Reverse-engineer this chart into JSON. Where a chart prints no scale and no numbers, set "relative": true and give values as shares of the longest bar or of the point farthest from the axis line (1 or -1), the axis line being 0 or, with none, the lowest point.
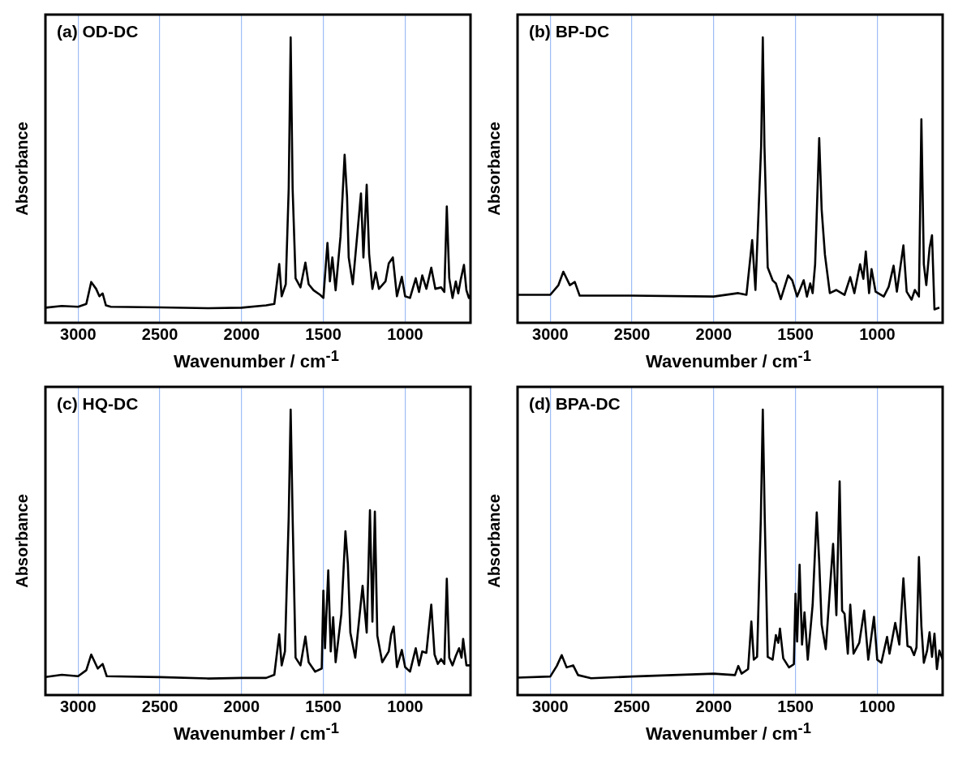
{
  "chart_data": [
    {
      "type": "line",
      "title": "(a) OD-DC",
      "xlabel": "Wavenumber / cm$^{-1}$",
      "ylabel": "Absorbance",
      "relative": true,
      "grid": "x",
      "color": "#000000",
      "xlim": [
        3200,
        600
      ],
      "xticks": [
        3000,
        2500,
        2000,
        1500,
        1000
      ],
      "x": [
        3200,
        3100,
        3000,
        2950,
        2920,
        2890,
        2870,
        2850,
        2830,
        2800,
        2500,
        2200,
        2000,
        1850,
        1800,
        1770,
        1755,
        1730,
        1712,
        1700,
        1688,
        1670,
        1640,
        1610,
        1590,
        1560,
        1520,
        1500,
        1475,
        1460,
        1445,
        1425,
        1395,
        1370,
        1355,
        1345,
        1320,
        1270,
        1255,
        1235,
        1220,
        1200,
        1180,
        1160,
        1120,
        1100,
        1075,
        1050,
        1020,
        1000,
        970,
        935,
        915,
        895,
        870,
        840,
        815,
        780,
        760,
        745,
        730,
        710,
        690,
        675,
        660,
        640,
        625,
        610,
        600
      ],
      "values": [
        0.053,
        0.059,
        0.056,
        0.066,
        0.143,
        0.119,
        0.093,
        0.103,
        0.061,
        0.056,
        0.054,
        0.051,
        0.053,
        0.061,
        0.066,
        0.206,
        0.093,
        0.135,
        0.47,
        1.0,
        0.47,
        0.156,
        0.124,
        0.211,
        0.135,
        0.114,
        0.098,
        0.087,
        0.28,
        0.145,
        0.229,
        0.114,
        0.303,
        0.589,
        0.44,
        0.229,
        0.135,
        0.453,
        0.229,
        0.484,
        0.24,
        0.119,
        0.177,
        0.119,
        0.145,
        0.208,
        0.229,
        0.093,
        0.161,
        0.093,
        0.087,
        0.156,
        0.108,
        0.166,
        0.119,
        0.193,
        0.119,
        0.124,
        0.108,
        0.408,
        0.156,
        0.087,
        0.145,
        0.103,
        0.151,
        0.203,
        0.114,
        0.087,
        0.098
      ]
    },
    {
      "type": "line",
      "title": "(b) BP-DC",
      "xlabel": "Wavenumber / cm$^{-1}$",
      "ylabel": "Absorbance",
      "relative": true,
      "grid": "x",
      "color": "#000000",
      "xlim": [
        3200,
        600
      ],
      "xticks": [
        3000,
        2500,
        2000,
        1500,
        1000
      ],
      "x": [
        3200,
        3000,
        2950,
        2920,
        2880,
        2850,
        2820,
        2500,
        2000,
        1850,
        1800,
        1765,
        1745,
        1710,
        1700,
        1690,
        1670,
        1640,
        1620,
        1590,
        1545,
        1520,
        1490,
        1450,
        1430,
        1410,
        1395,
        1380,
        1355,
        1340,
        1320,
        1290,
        1250,
        1200,
        1165,
        1140,
        1105,
        1085,
        1070,
        1050,
        1035,
        1010,
        960,
        930,
        900,
        880,
        840,
        820,
        790,
        770,
        745,
        730,
        715,
        700,
        680,
        665,
        650,
        620
      ],
      "values": [
        0.098,
        0.098,
        0.132,
        0.179,
        0.132,
        0.143,
        0.095,
        0.095,
        0.092,
        0.104,
        0.098,
        0.29,
        0.115,
        0.62,
        1.0,
        0.62,
        0.194,
        0.149,
        0.138,
        0.083,
        0.166,
        0.149,
        0.092,
        0.149,
        0.092,
        0.138,
        0.104,
        0.205,
        0.647,
        0.397,
        0.239,
        0.104,
        0.115,
        0.098,
        0.16,
        0.104,
        0.205,
        0.154,
        0.25,
        0.104,
        0.188,
        0.109,
        0.092,
        0.126,
        0.2,
        0.109,
        0.271,
        0.109,
        0.081,
        0.115,
        0.092,
        0.713,
        0.205,
        0.132,
        0.262,
        0.307,
        0.047,
        0.053
      ]
    },
    {
      "type": "line",
      "title": "(c) HQ-DC",
      "xlabel": "Wavenumber / cm$^{-1}$",
      "ylabel": "Absorbance",
      "relative": true,
      "grid": "x",
      "color": "#000000",
      "xlim": [
        3200,
        600
      ],
      "xticks": [
        3000,
        2500,
        2000,
        1500,
        1000
      ],
      "x": [
        3200,
        3100,
        3000,
        2950,
        2920,
        2880,
        2850,
        2825,
        2500,
        2200,
        2000,
        1850,
        1800,
        1770,
        1755,
        1735,
        1712,
        1700,
        1688,
        1670,
        1640,
        1610,
        1590,
        1550,
        1510,
        1500,
        1490,
        1470,
        1455,
        1440,
        1425,
        1390,
        1365,
        1350,
        1335,
        1305,
        1260,
        1235,
        1215,
        1200,
        1185,
        1170,
        1140,
        1100,
        1085,
        1070,
        1050,
        1020,
        1000,
        970,
        935,
        915,
        895,
        870,
        840,
        820,
        800,
        780,
        760,
        745,
        730,
        710,
        690,
        670,
        655,
        645,
        625,
        600
      ],
      "values": [
        0.063,
        0.071,
        0.066,
        0.087,
        0.142,
        0.093,
        0.109,
        0.066,
        0.063,
        0.058,
        0.06,
        0.06,
        0.071,
        0.213,
        0.104,
        0.153,
        0.623,
        1.0,
        0.623,
        0.131,
        0.104,
        0.205,
        0.115,
        0.082,
        0.093,
        0.366,
        0.164,
        0.437,
        0.153,
        0.273,
        0.115,
        0.284,
        0.574,
        0.459,
        0.219,
        0.131,
        0.383,
        0.219,
        0.648,
        0.257,
        0.643,
        0.208,
        0.115,
        0.153,
        0.213,
        0.24,
        0.098,
        0.158,
        0.098,
        0.082,
        0.164,
        0.104,
        0.153,
        0.148,
        0.317,
        0.142,
        0.109,
        0.126,
        0.109,
        0.408,
        0.131,
        0.104,
        0.137,
        0.164,
        0.131,
        0.197,
        0.104,
        0.104
      ]
    },
    {
      "type": "line",
      "title": "(d) BPA-DC",
      "xlabel": "Wavenumber / cm$^{-1}$",
      "ylabel": "Absorbance",
      "relative": true,
      "grid": "x",
      "color": "#000000",
      "xlim": [
        3200,
        600
      ],
      "xticks": [
        3000,
        2500,
        2000,
        1500,
        1000
      ],
      "x": [
        3200,
        3000,
        2960,
        2930,
        2900,
        2860,
        2830,
        2750,
        2500,
        2000,
        1870,
        1850,
        1830,
        1790,
        1770,
        1755,
        1735,
        1712,
        1700,
        1688,
        1670,
        1640,
        1620,
        1605,
        1595,
        1575,
        1540,
        1510,
        1500,
        1490,
        1475,
        1460,
        1445,
        1425,
        1395,
        1370,
        1355,
        1340,
        1315,
        1270,
        1250,
        1230,
        1215,
        1200,
        1180,
        1165,
        1145,
        1110,
        1080,
        1055,
        1020,
        1000,
        975,
        940,
        925,
        890,
        865,
        840,
        815,
        795,
        775,
        760,
        745,
        730,
        715,
        695,
        680,
        665,
        650,
        635,
        620,
        600
      ],
      "values": [
        0.061,
        0.065,
        0.102,
        0.14,
        0.097,
        0.104,
        0.07,
        0.059,
        0.065,
        0.075,
        0.07,
        0.102,
        0.075,
        0.091,
        0.258,
        0.124,
        0.134,
        0.618,
        1.0,
        0.618,
        0.134,
        0.124,
        0.21,
        0.183,
        0.233,
        0.129,
        0.097,
        0.108,
        0.355,
        0.188,
        0.457,
        0.177,
        0.29,
        0.124,
        0.317,
        0.64,
        0.468,
        0.247,
        0.161,
        0.53,
        0.28,
        0.749,
        0.296,
        0.285,
        0.145,
        0.317,
        0.145,
        0.183,
        0.296,
        0.124,
        0.274,
        0.124,
        0.113,
        0.204,
        0.145,
        0.253,
        0.177,
        0.409,
        0.172,
        0.167,
        0.14,
        0.167,
        0.484,
        0.242,
        0.113,
        0.156,
        0.22,
        0.134,
        0.215,
        0.091,
        0.156,
        0.124
      ]
    }
  ]
}
